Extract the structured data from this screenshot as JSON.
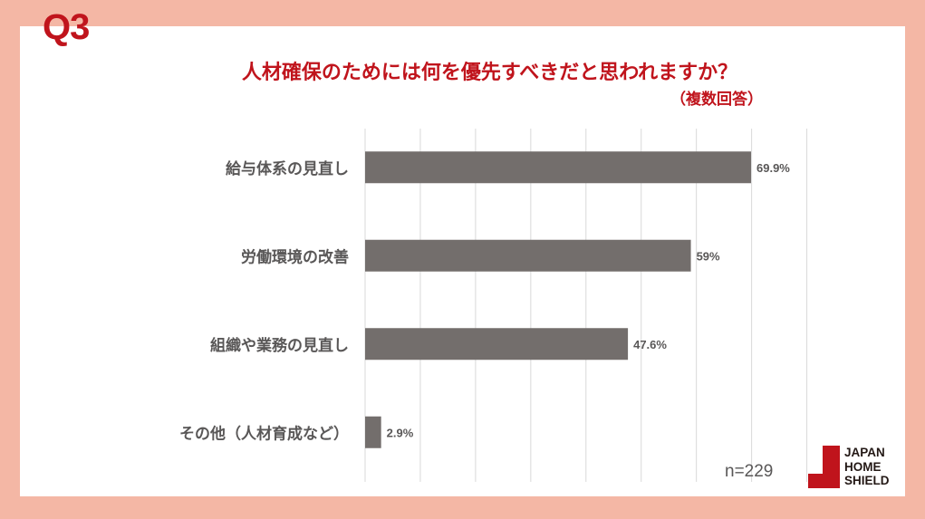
{
  "header": {
    "question": "Q3",
    "title": "人材確保のためには何を優先すべきだと思われますか？",
    "subtitle": "（複数回答）"
  },
  "chart_data": {
    "type": "bar",
    "orientation": "horizontal",
    "categories": [
      "給与体系の見直し",
      "労働環境の改善",
      "組織や業務の見直し",
      "その他（人材育成など）"
    ],
    "values": [
      69.9,
      59,
      47.6,
      2.9
    ],
    "labels": [
      "69.9%",
      "59%",
      "47.6%",
      "2.9%"
    ],
    "xlim": [
      0,
      80
    ],
    "grid_step": 10,
    "grid": true,
    "bar_color": "#736e6c"
  },
  "sample": "n=229",
  "logo": {
    "lines": [
      "JAPAN",
      "HOME",
      "SHIELD"
    ],
    "color": "#c0141c"
  }
}
